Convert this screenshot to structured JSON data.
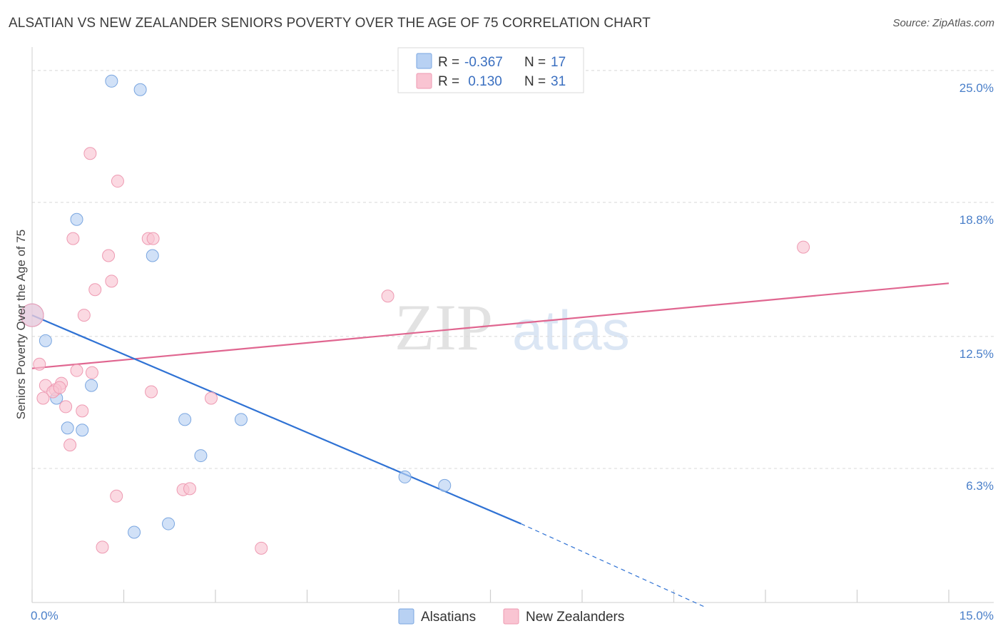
{
  "header": {
    "title": "ALSATIAN VS NEW ZEALANDER SENIORS POVERTY OVER THE AGE OF 75 CORRELATION CHART",
    "source": "Source: ZipAtlas.com"
  },
  "legend": {
    "rows": [
      {
        "r_label": "R =",
        "r_value": "-0.367",
        "n_label": "N =",
        "n_value": "17",
        "color": "#b8d1f3"
      },
      {
        "r_label": "R =",
        "r_value": " 0.130",
        "n_label": "N =",
        "n_value": "31",
        "color": "#f9c4d2"
      }
    ]
  },
  "watermark": {
    "zip": "ZIP",
    "atlas": "atlas"
  },
  "chart_data": {
    "type": "scatter",
    "title": "ALSATIAN VS NEW ZEALANDER SENIORS POVERTY OVER THE AGE OF 75 CORRELATION CHART",
    "xlabel": "",
    "ylabel": "Seniors Poverty Over the Age of 75",
    "xlim": [
      0,
      15
    ],
    "ylim": [
      0,
      25.9
    ],
    "x_tick_labels": [
      "0.0%",
      "15.0%"
    ],
    "y_ticks": [
      25.0,
      18.8,
      12.5,
      6.3
    ],
    "y_tick_labels": [
      "25.0%",
      "18.8%",
      "12.5%",
      "6.3%"
    ],
    "grid": "horizontal dashed",
    "series": [
      {
        "name": "Alsatians",
        "color": "#b8d1f3",
        "stroke": "#7aa6e0",
        "line_color": "#2f72d4",
        "points": [
          {
            "x": 0.0,
            "y": 13.5
          },
          {
            "x": 1.3,
            "y": 24.5
          },
          {
            "x": 1.77,
            "y": 24.1
          },
          {
            "x": 0.73,
            "y": 18.0
          },
          {
            "x": 1.97,
            "y": 16.3
          },
          {
            "x": 0.22,
            "y": 12.3
          },
          {
            "x": 0.97,
            "y": 10.2
          },
          {
            "x": 0.4,
            "y": 9.6
          },
          {
            "x": 0.58,
            "y": 8.2
          },
          {
            "x": 0.82,
            "y": 8.1
          },
          {
            "x": 2.5,
            "y": 8.6
          },
          {
            "x": 3.42,
            "y": 8.6
          },
          {
            "x": 2.76,
            "y": 6.9
          },
          {
            "x": 6.1,
            "y": 5.9
          },
          {
            "x": 6.75,
            "y": 5.5
          },
          {
            "x": 2.23,
            "y": 3.7
          },
          {
            "x": 1.67,
            "y": 3.3
          }
        ],
        "trend": {
          "x0": 0.0,
          "y0": 13.5,
          "x1": 8.0,
          "y1": 3.7,
          "dash_to_x": 11.0,
          "dash_to_y": -0.2
        }
      },
      {
        "name": "New Zealanders",
        "color": "#f9c4d2",
        "stroke": "#ee9ab2",
        "line_color": "#e06690",
        "points": [
          {
            "x": 0.0,
            "y": 13.5
          },
          {
            "x": 0.95,
            "y": 21.1
          },
          {
            "x": 1.4,
            "y": 19.8
          },
          {
            "x": 0.67,
            "y": 17.1
          },
          {
            "x": 1.9,
            "y": 17.1
          },
          {
            "x": 1.98,
            "y": 17.1
          },
          {
            "x": 1.25,
            "y": 16.3
          },
          {
            "x": 1.3,
            "y": 15.1
          },
          {
            "x": 1.03,
            "y": 14.7
          },
          {
            "x": 0.85,
            "y": 13.5
          },
          {
            "x": 5.82,
            "y": 14.4
          },
          {
            "x": 12.62,
            "y": 16.7
          },
          {
            "x": 0.12,
            "y": 11.2
          },
          {
            "x": 0.73,
            "y": 10.9
          },
          {
            "x": 0.98,
            "y": 10.8
          },
          {
            "x": 0.48,
            "y": 10.3
          },
          {
            "x": 0.22,
            "y": 10.2
          },
          {
            "x": 0.38,
            "y": 10.0
          },
          {
            "x": 0.34,
            "y": 9.9
          },
          {
            "x": 0.18,
            "y": 9.6
          },
          {
            "x": 1.95,
            "y": 9.9
          },
          {
            "x": 2.93,
            "y": 9.6
          },
          {
            "x": 0.55,
            "y": 9.2
          },
          {
            "x": 0.82,
            "y": 9.0
          },
          {
            "x": 0.62,
            "y": 7.4
          },
          {
            "x": 1.38,
            "y": 5.0
          },
          {
            "x": 2.47,
            "y": 5.3
          },
          {
            "x": 2.58,
            "y": 5.35
          },
          {
            "x": 1.15,
            "y": 2.6
          },
          {
            "x": 3.75,
            "y": 2.55
          },
          {
            "x": 0.45,
            "y": 10.1
          }
        ],
        "trend": {
          "x0": 0.0,
          "y0": 11.0,
          "x1": 15.0,
          "y1": 15.0
        }
      }
    ]
  },
  "bottom_legend": [
    {
      "label": "Alsatians",
      "color": "#b8d1f3"
    },
    {
      "label": "New Zealanders",
      "color": "#f9c4d2"
    }
  ]
}
